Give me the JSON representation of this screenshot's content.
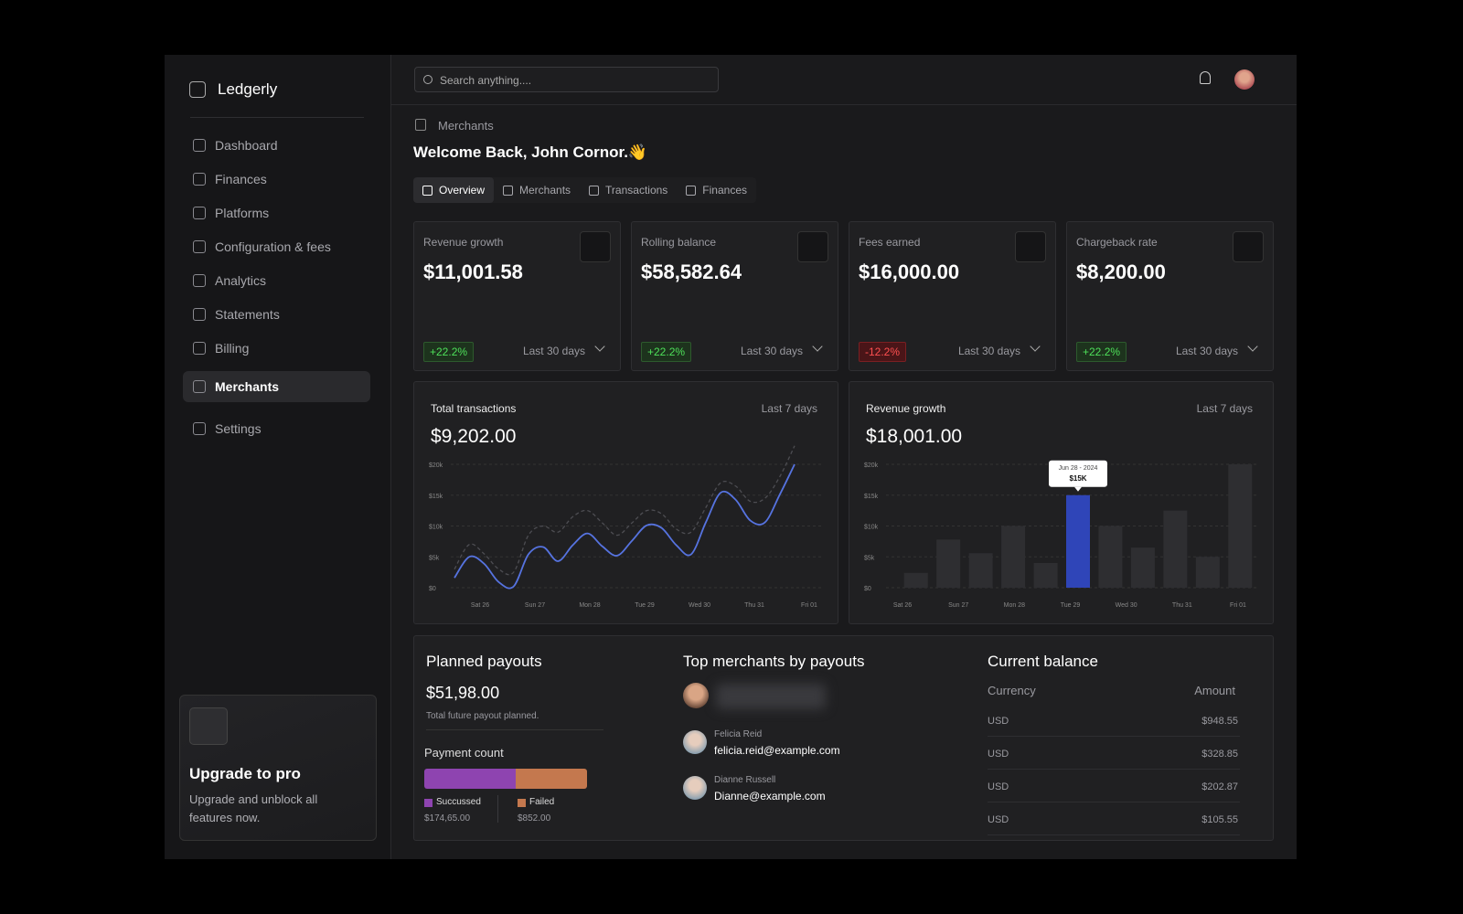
{
  "sidebar": {
    "brand": "Ledgerly",
    "nav": [
      "Dashboard",
      "Finances",
      "Platforms",
      "Configuration & fees",
      "Analytics",
      "Statements",
      "Billing",
      "Merchants",
      "Settings"
    ],
    "active": 7,
    "upgrade": {
      "title": "Upgrade to pro",
      "text": "Upgrade and unblock all features now."
    }
  },
  "topbar": {
    "search_placeholder": "Search anything...."
  },
  "breadcrumb": "Merchants",
  "welcome": "Welcome Back, John Cornor.👋",
  "tabs": [
    "Overview",
    "Merchants",
    "Transactions",
    "Finances"
  ],
  "active_tab": 0,
  "stats": [
    {
      "label": "Revenue growth",
      "value": "$11,001.58",
      "change": "+22.2%",
      "trend": "up",
      "period": "Last 30 days"
    },
    {
      "label": "Rolling balance",
      "value": "$58,582.64",
      "change": "+22.2%",
      "trend": "up",
      "period": "Last 30 days"
    },
    {
      "label": "Fees earned",
      "value": "$16,000.00",
      "change": "-12.2%",
      "trend": "down",
      "period": "Last 30 days"
    },
    {
      "label": "Chargeback rate",
      "value": "$8,200.00",
      "change": "+22.2%",
      "trend": "up",
      "period": "Last 30 days"
    }
  ],
  "charts": [
    {
      "type": "line",
      "title": "Total transactions",
      "period": "Last 7 days",
      "total": "$9,202.00",
      "x_labels": [
        "Sat 26",
        "Sun 27",
        "Mon 28",
        "Tue 29",
        "Wed 30",
        "Thu 31",
        "Fri 01"
      ],
      "ylim": [
        0,
        20000
      ],
      "yticks": [
        {
          "value": 0,
          "label": "$0"
        },
        {
          "value": 5000,
          "label": "$5k"
        },
        {
          "value": 10000,
          "label": "$10k"
        },
        {
          "value": 15000,
          "label": "$15k"
        },
        {
          "value": 20000,
          "label": "$20k"
        }
      ],
      "grid": true,
      "series": [
        {
          "color": "#4d4d52",
          "dashed": true,
          "values": [
            3000,
            7000,
            5500,
            3000,
            2500,
            8500,
            10000,
            9000,
            11500,
            12500,
            10500,
            8500,
            10500,
            12500,
            12000,
            9500,
            9000,
            13000,
            17000,
            16500,
            14000,
            14500,
            18000,
            23000
          ]
        },
        {
          "color": "#5673e0",
          "dashed": false,
          "values": [
            1600,
            5000,
            3900,
            900,
            200,
            5400,
            6600,
            4300,
            6900,
            8800,
            6700,
            5200,
            7600,
            10100,
            9700,
            6900,
            5400,
            10600,
            15400,
            14300,
            10900,
            10600,
            15100,
            20000
          ]
        }
      ]
    },
    {
      "type": "bar",
      "title": "Revenue growth",
      "period": "Last 7 days",
      "total": "$18,001.00",
      "x_labels": [
        "Sat 26",
        "Sun 27",
        "Mon 28",
        "Tue 29",
        "Wed 30",
        "Thu 31",
        "Fri 01"
      ],
      "ylim": [
        0,
        20000
      ],
      "yticks": [
        {
          "value": 0,
          "label": "$0"
        },
        {
          "value": 5000,
          "label": "$5k"
        },
        {
          "value": 10000,
          "label": "$10k"
        },
        {
          "value": 15000,
          "label": "$15k"
        },
        {
          "value": 20000,
          "label": "$20k"
        }
      ],
      "grid": true,
      "color": "#2e2e31",
      "highlight_color": "#2f45b8",
      "values": [
        2400,
        7800,
        5600,
        10000,
        4000,
        15000,
        10000,
        6500,
        12500,
        5000,
        20000
      ],
      "highlight": 5,
      "tooltip": {
        "date": "Jun 28 - 2024",
        "value_label": "$15K"
      }
    }
  ],
  "payouts": {
    "title": "Planned payouts",
    "amount": "$51,98.00",
    "subtitle": "Total future payout planned.",
    "count_title": "Payment count",
    "segments": [
      {
        "name": "Succussed",
        "amount": "$174,65.00",
        "share": 56,
        "color": "#8e44b0"
      },
      {
        "name": "Failed",
        "amount": "$852.00",
        "share": 44,
        "color": "#c4784e"
      }
    ]
  },
  "merchants": {
    "title": "Top merchants by payouts",
    "list": [
      {
        "name": "Felicia Reid",
        "email": "felicia.reid@example.com"
      },
      {
        "name": "Dianne Russell",
        "email": "Dianne@example.com"
      }
    ]
  },
  "balance": {
    "title": "Current balance",
    "headers": [
      "Currency",
      "Amount"
    ],
    "rows": [
      [
        "USD",
        "$948.55"
      ],
      [
        "USD",
        "$328.85"
      ],
      [
        "USD",
        "$202.87"
      ],
      [
        "USD",
        "$105.55"
      ]
    ]
  }
}
